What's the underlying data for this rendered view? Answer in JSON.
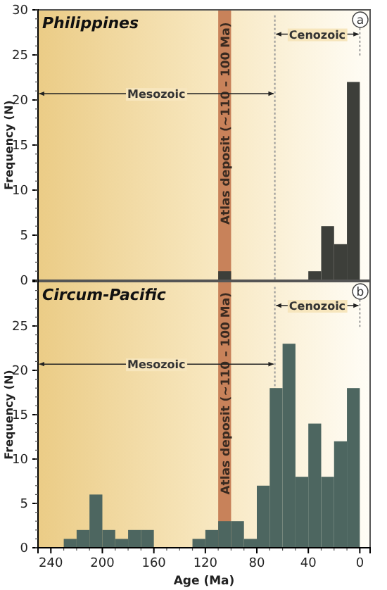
{
  "chart_data": [
    {
      "type": "histogram",
      "title": "Philippines",
      "subtitle": "a",
      "ylabel": "Frequency (N)",
      "bins": [
        230,
        220,
        210,
        200,
        190,
        180,
        170,
        160,
        150,
        140,
        130,
        120,
        110,
        100,
        90,
        80,
        70,
        60,
        50,
        40,
        30,
        20,
        10,
        0
      ],
      "values": [
        0,
        0,
        0,
        0,
        0,
        0,
        0,
        0,
        0,
        0,
        0,
        0,
        1,
        0,
        0,
        0,
        0,
        0,
        0,
        1,
        6,
        4,
        22
      ],
      "color": "#3d3f3a",
      "xlim": [
        250,
        -8
      ],
      "ylim": [
        0,
        30
      ],
      "yticks": [
        0,
        5,
        10,
        15,
        20,
        25,
        30
      ],
      "tick_labels": "y",
      "bands": [
        {
          "axis": "x",
          "from": 110,
          "to": 100,
          "label": "Atlas deposit (~110 – 100 Ma)",
          "color": "#c8825a"
        }
      ],
      "ref_lines": [
        {
          "axis": "x",
          "value": 66,
          "line_style": "dotted"
        },
        {
          "axis": "x",
          "value": 0,
          "line_style": "dotted"
        }
      ],
      "annotations": [
        "Mesozoic",
        "Cenozoic"
      ]
    },
    {
      "type": "histogram",
      "title": "Circum-Pacific",
      "subtitle": "b",
      "ylabel": "Frequency (N)",
      "xlabel": "Age (Ma)",
      "bins": [
        230,
        220,
        210,
        200,
        190,
        180,
        170,
        160,
        150,
        140,
        130,
        120,
        110,
        100,
        90,
        80,
        70,
        60,
        50,
        40,
        30,
        20,
        10,
        0
      ],
      "values": [
        1,
        2,
        6,
        2,
        1,
        2,
        2,
        0,
        0,
        0,
        1,
        2,
        3,
        3,
        1,
        7,
        18,
        23,
        8,
        14,
        8,
        12,
        18
      ],
      "color": "#4d6660",
      "xlim": [
        250,
        -8
      ],
      "xticks": [
        240,
        200,
        160,
        120,
        80,
        40,
        0
      ],
      "ylim": [
        0,
        30
      ],
      "yticks": [
        0,
        5,
        10,
        15,
        20,
        25
      ],
      "bands": [
        {
          "axis": "x",
          "from": 110,
          "to": 100,
          "label": "Atlas deposit (~110 – 100 Ma)",
          "color": "#c8825a"
        }
      ],
      "ref_lines": [
        {
          "axis": "x",
          "value": 66,
          "line_style": "dotted"
        },
        {
          "axis": "x",
          "value": 0,
          "line_style": "dotted"
        }
      ],
      "annotations": [
        "Mesozoic",
        "Cenozoic"
      ]
    }
  ]
}
